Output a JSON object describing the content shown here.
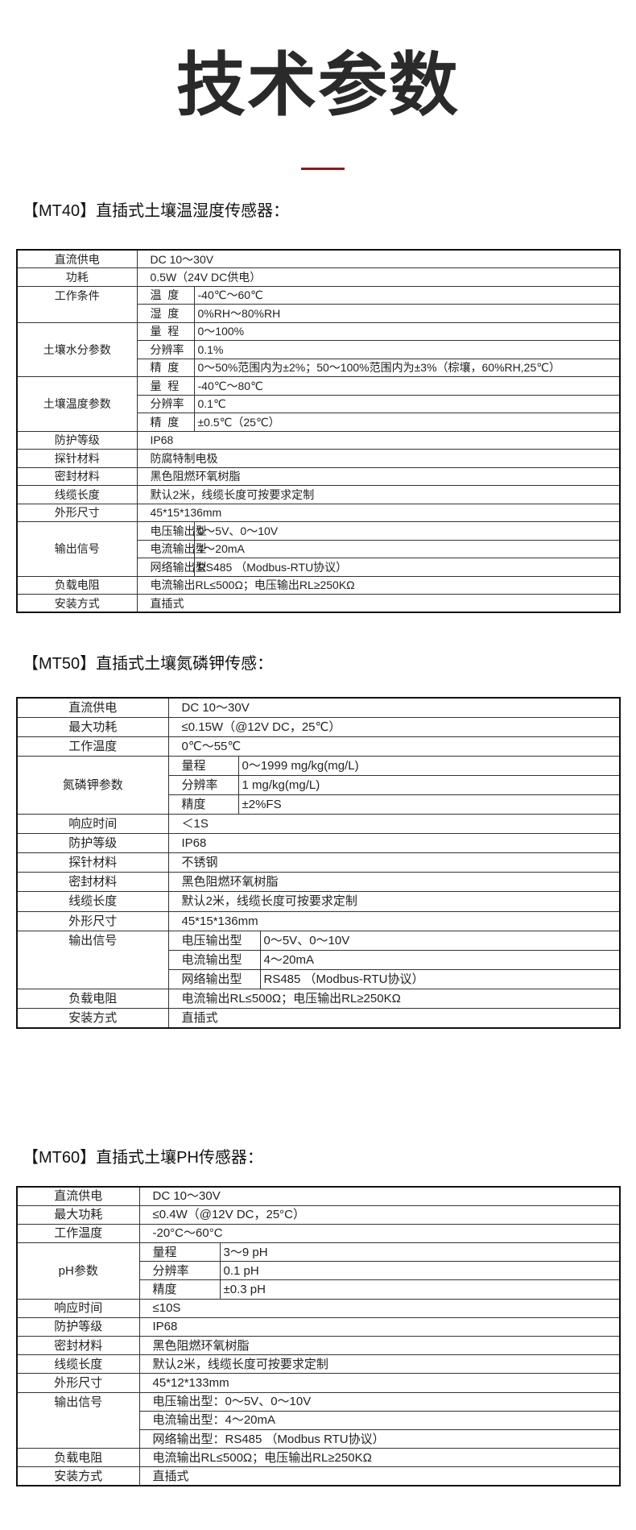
{
  "page_title": "技术参数",
  "accent_color": "#8b1a1a",
  "sections": [
    {
      "heading": "【MT40】直插式土壤温湿度传感器：",
      "rows": [
        {
          "label": "直流供电",
          "value": "DC 10～30V"
        },
        {
          "label": "功耗",
          "value": "0.5W（24V DC供电）"
        },
        {
          "label": "工作条件",
          "subs": [
            {
              "k": "温  度",
              "v": "-40℃～60℃"
            },
            {
              "k": "湿  度",
              "v": "0%RH～80%RH"
            }
          ]
        },
        {
          "label": "土壤水分参数",
          "subs": [
            {
              "k": "量  程",
              "v": "0～100%"
            },
            {
              "k": "分辨率",
              "v": "0.1%"
            },
            {
              "k": "精  度",
              "v": "0～50%范围内为±2%；50～100%范围内为±3%（棕壤，60%RH,25℃）"
            }
          ]
        },
        {
          "label": "土壤温度参数",
          "subs": [
            {
              "k": "量  程",
              "v": "-40℃～80℃"
            },
            {
              "k": "分辨率",
              "v": "0.1℃"
            },
            {
              "k": "精  度",
              "v": "±0.5℃（25℃）"
            }
          ]
        },
        {
          "label": "防护等级",
          "value": "IP68"
        },
        {
          "label": "探针材料",
          "value": "防腐特制电极"
        },
        {
          "label": "密封材料",
          "value": "黑色阻燃环氧树脂"
        },
        {
          "label": "线缆长度",
          "value": "默认2米，线缆长度可按要求定制"
        },
        {
          "label": "外形尺寸",
          "value": "45*15*136mm"
        },
        {
          "label": "输出信号",
          "subs": [
            {
              "k": "电压输出型",
              "v": "0～5V、0～10V"
            },
            {
              "k": "电流输出型",
              "v": "4～20mA"
            },
            {
              "k": "网络输出型",
              "v": "RS485 （Modbus-RTU协议）"
            }
          ]
        },
        {
          "label": "负载电阻",
          "value": "电流输出RL≤500Ω；电压输出RL≥250KΩ"
        },
        {
          "label": "安装方式",
          "value": "直插式"
        }
      ]
    },
    {
      "heading": "【MT50】直插式土壤氮磷钾传感：",
      "rows": [
        {
          "label": "直流供电",
          "value": "DC 10～30V"
        },
        {
          "label": "最大功耗",
          "value": "≤0.15W（@12V DC，25℃）"
        },
        {
          "label": "工作温度",
          "value": "0℃～55℃"
        },
        {
          "label": "氮磷钾参数",
          "subs": [
            {
              "k": "量程",
              "v": "0～1999 mg/kg(mg/L)"
            },
            {
              "k": "分辨率",
              "v": "1 mg/kg(mg/L)"
            },
            {
              "k": "精度",
              "v": "±2%FS"
            }
          ]
        },
        {
          "label": "响应时间",
          "value": "＜1S"
        },
        {
          "label": "防护等级",
          "value": "IP68"
        },
        {
          "label": "探针材料",
          "value": "不锈钢"
        },
        {
          "label": "密封材料",
          "value": "黑色阻燃环氧树脂"
        },
        {
          "label": "线缆长度",
          "value": "默认2米，线缆长度可按要求定制"
        },
        {
          "label": "外形尺寸",
          "value": "45*15*136mm"
        },
        {
          "label": "输出信号",
          "subs": [
            {
              "k": "电压输出型",
              "v": "0～5V、0～10V"
            },
            {
              "k": "电流输出型",
              "v": "4～20mA"
            },
            {
              "k": "网络输出型",
              "v": "RS485 （Modbus-RTU协议）"
            }
          ]
        },
        {
          "label": "负载电阻",
          "value": "电流输出RL≤500Ω；电压输出RL≥250KΩ"
        },
        {
          "label": "安装方式",
          "value": "直插式"
        }
      ]
    },
    {
      "heading": "【MT60】直插式土壤PH传感器：",
      "rows": [
        {
          "label": "直流供电",
          "value": "DC 10～30V"
        },
        {
          "label": "最大功耗",
          "value": "≤0.4W（@12V DC，25°C）"
        },
        {
          "label": "工作温度",
          "value": "-20°C～60°C"
        },
        {
          "label": "pH参数",
          "subs": [
            {
              "k": "量程",
              "v": "3～9 pH"
            },
            {
              "k": "分辨率",
              "v": "0.1 pH"
            },
            {
              "k": "精度",
              "v": "±0.3 pH"
            }
          ]
        },
        {
          "label": "响应时间",
          "value": "≤10S"
        },
        {
          "label": "防护等级",
          "value": "IP68"
        },
        {
          "label": "密封材料",
          "value": "黑色阻燃环氧树脂"
        },
        {
          "label": "线缆长度",
          "value": "默认2米，线缆长度可按要求定制"
        },
        {
          "label": "外形尺寸",
          "value": "45*12*133mm"
        },
        {
          "label": "输出信号",
          "subs": [
            {
              "v": "电压输出型：0～5V、0～10V"
            },
            {
              "v": "电流输出型：4～20mA"
            },
            {
              "v": "网络输出型：RS485 （Modbus RTU协议）"
            }
          ]
        },
        {
          "label": "负载电阻",
          "value": "电流输出RL≤500Ω；电压输出RL≥250KΩ"
        },
        {
          "label": "安装方式",
          "value": "直插式"
        }
      ]
    }
  ]
}
